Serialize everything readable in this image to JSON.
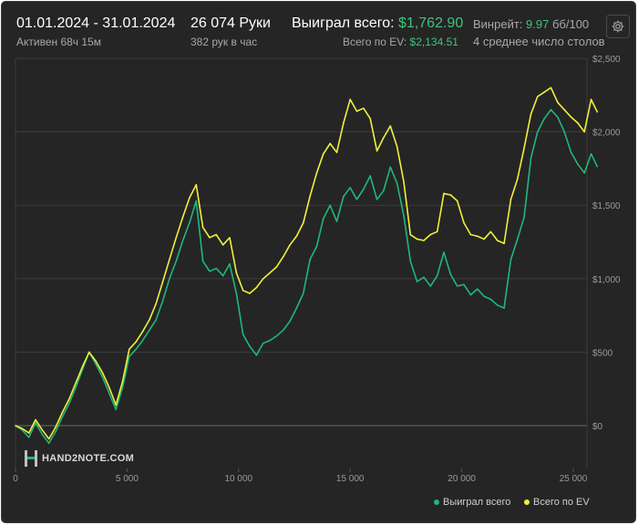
{
  "header": {
    "date_range": "01.01.2024 - 31.01.2024",
    "active_label": "Активен 68ч 15м",
    "hands_label": "26 074 Руки",
    "hands_per_hour": "382 рук в час",
    "won_total_label": "Выиграл всего:",
    "won_total_value": "$1,762.90",
    "ev_total_label": "Всего по EV:",
    "ev_total_value": "$2,134.51",
    "winrate_label": "Винрейт:",
    "winrate_value": "9.97",
    "winrate_unit": "бб/100",
    "avg_tables": "4 среднее число столов"
  },
  "logo": {
    "text": "HAND2NOTE.COM"
  },
  "icons": {
    "settings": "gear-icon",
    "logo": "hand2note-logo-icon"
  },
  "colors": {
    "background": "#252525",
    "won_series": "#1fb87a",
    "ev_series": "#f2ef3c",
    "grid": "#3c3c3c",
    "zero_line": "#6a6a6a",
    "accent_green": "#3cc47c"
  },
  "chart_data": {
    "type": "line",
    "xlim": [
      0,
      26074
    ],
    "ylim": [
      -200,
      2500
    ],
    "x_ticks": [
      0,
      5000,
      10000,
      15000,
      20000,
      25000
    ],
    "x_tick_labels": [
      "0",
      "5 000",
      "10 000",
      "15 000",
      "20 000",
      "25 000"
    ],
    "y_ticks": [
      0,
      500,
      1000,
      1500,
      2000,
      2500
    ],
    "y_tick_labels": [
      "$0",
      "$500",
      "$1,000",
      "$1,500",
      "$2,000",
      "$2,500"
    ],
    "grid": true,
    "legend_position": "bottom-right",
    "series": [
      {
        "name": "Выиграл всего",
        "color": "#1fb87a",
        "x": [
          0,
          300,
          600,
          900,
          1200,
          1500,
          1800,
          2100,
          2400,
          2700,
          3000,
          3300,
          3600,
          3900,
          4200,
          4500,
          4800,
          5100,
          5400,
          5700,
          6000,
          6300,
          6600,
          6900,
          7200,
          7500,
          7800,
          8100,
          8400,
          8700,
          9000,
          9300,
          9600,
          9900,
          10200,
          10500,
          10800,
          11100,
          11400,
          11700,
          12000,
          12300,
          12600,
          12900,
          13200,
          13500,
          13800,
          14100,
          14400,
          14700,
          15000,
          15300,
          15600,
          15900,
          16200,
          16500,
          16800,
          17100,
          17400,
          17700,
          18000,
          18300,
          18600,
          18900,
          19200,
          19500,
          19800,
          20100,
          20400,
          20700,
          21000,
          21300,
          21600,
          21900,
          22200,
          22500,
          22800,
          23100,
          23400,
          23700,
          24000,
          24300,
          24600,
          24900,
          25200,
          25500,
          25800,
          26074
        ],
        "y": [
          0,
          -30,
          -80,
          20,
          -60,
          -120,
          -40,
          60,
          150,
          260,
          380,
          500,
          420,
          330,
          220,
          110,
          260,
          470,
          520,
          580,
          650,
          720,
          850,
          1000,
          1120,
          1260,
          1380,
          1530,
          1120,
          1050,
          1070,
          1020,
          1100,
          900,
          620,
          540,
          480,
          560,
          580,
          610,
          650,
          710,
          800,
          900,
          1130,
          1220,
          1410,
          1500,
          1390,
          1560,
          1620,
          1540,
          1610,
          1700,
          1540,
          1600,
          1760,
          1650,
          1430,
          1120,
          980,
          1010,
          950,
          1020,
          1180,
          1030,
          950,
          960,
          890,
          930,
          880,
          860,
          820,
          800,
          1130,
          1270,
          1420,
          1820,
          2000,
          2090,
          2150,
          2100,
          2000,
          1860,
          1780,
          1720,
          1850,
          1763
        ]
      },
      {
        "name": "Всего по EV",
        "color": "#f2ef3c",
        "x": [
          0,
          300,
          600,
          900,
          1200,
          1500,
          1800,
          2100,
          2400,
          2700,
          3000,
          3300,
          3600,
          3900,
          4200,
          4500,
          4800,
          5100,
          5400,
          5700,
          6000,
          6300,
          6600,
          6900,
          7200,
          7500,
          7800,
          8100,
          8400,
          8700,
          9000,
          9300,
          9600,
          9900,
          10200,
          10500,
          10800,
          11100,
          11400,
          11700,
          12000,
          12300,
          12600,
          12900,
          13200,
          13500,
          13800,
          14100,
          14400,
          14700,
          15000,
          15300,
          15600,
          15900,
          16200,
          16500,
          16800,
          17100,
          17400,
          17700,
          18000,
          18300,
          18600,
          18900,
          19200,
          19500,
          19800,
          20100,
          20400,
          20700,
          21000,
          21300,
          21600,
          21900,
          22200,
          22500,
          22800,
          23100,
          23400,
          23700,
          24000,
          24300,
          24600,
          24900,
          25200,
          25500,
          25800,
          26074
        ],
        "y": [
          0,
          -20,
          -50,
          40,
          -30,
          -90,
          -10,
          90,
          180,
          290,
          400,
          500,
          440,
          360,
          260,
          140,
          300,
          520,
          570,
          640,
          720,
          830,
          980,
          1130,
          1280,
          1420,
          1550,
          1640,
          1350,
          1280,
          1300,
          1230,
          1280,
          1040,
          920,
          900,
          940,
          1000,
          1040,
          1080,
          1150,
          1230,
          1290,
          1380,
          1560,
          1720,
          1850,
          1920,
          1860,
          2060,
          2220,
          2140,
          2160,
          2090,
          1870,
          1960,
          2040,
          1900,
          1660,
          1300,
          1270,
          1260,
          1300,
          1320,
          1580,
          1570,
          1530,
          1380,
          1300,
          1290,
          1270,
          1320,
          1260,
          1240,
          1540,
          1680,
          1890,
          2120,
          2240,
          2270,
          2300,
          2200,
          2150,
          2100,
          2060,
          2000,
          2220,
          2135
        ]
      }
    ]
  }
}
